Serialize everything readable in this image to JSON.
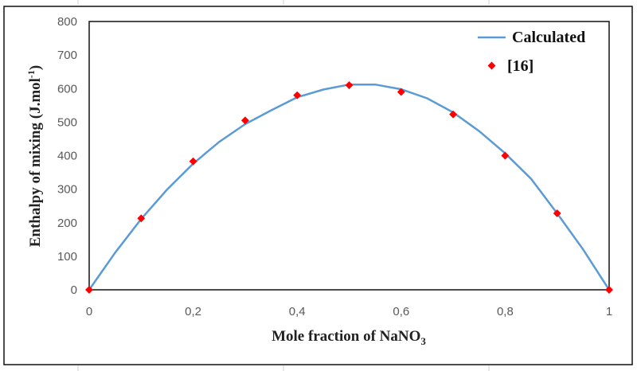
{
  "chart_data": {
    "type": "line",
    "title": "",
    "xlabel": "Mole fraction of NaNO",
    "xlabel_sub": "3",
    "ylabel": "Enthalpy of mixing (J.mol",
    "ylabel_sup": "-1",
    "ylabel_end": ")",
    "xlim": [
      0,
      1
    ],
    "ylim": [
      0,
      800
    ],
    "x_ticks": [
      "0",
      "0,2",
      "0,4",
      "0,6",
      "0,8",
      "1"
    ],
    "y_ticks": [
      "0",
      "100",
      "200",
      "300",
      "400",
      "500",
      "600",
      "700",
      "800"
    ],
    "grid": false,
    "legend_position": "top-right",
    "series": [
      {
        "name": "Calculated",
        "kind": "line",
        "color": "#5b9bd5",
        "x": [
          0,
          0.05,
          0.1,
          0.15,
          0.2,
          0.25,
          0.3,
          0.35,
          0.4,
          0.45,
          0.5,
          0.55,
          0.6,
          0.65,
          0.7,
          0.75,
          0.8,
          0.85,
          0.9,
          0.95,
          1
        ],
        "y": [
          0,
          111,
          211,
          299,
          376,
          441,
          494,
          535,
          574,
          597,
          612,
          612,
          598,
          571,
          529,
          473,
          407,
          331,
          228,
          120,
          0
        ]
      },
      {
        "name": "[16]",
        "kind": "scatter",
        "color": "#ff0000",
        "x": [
          0,
          0.1,
          0.2,
          0.3,
          0.4,
          0.5,
          0.6,
          0.7,
          0.8,
          0.9,
          1
        ],
        "y": [
          0,
          213,
          383,
          505,
          580,
          610,
          590,
          523,
          400,
          228,
          0
        ]
      }
    ]
  }
}
